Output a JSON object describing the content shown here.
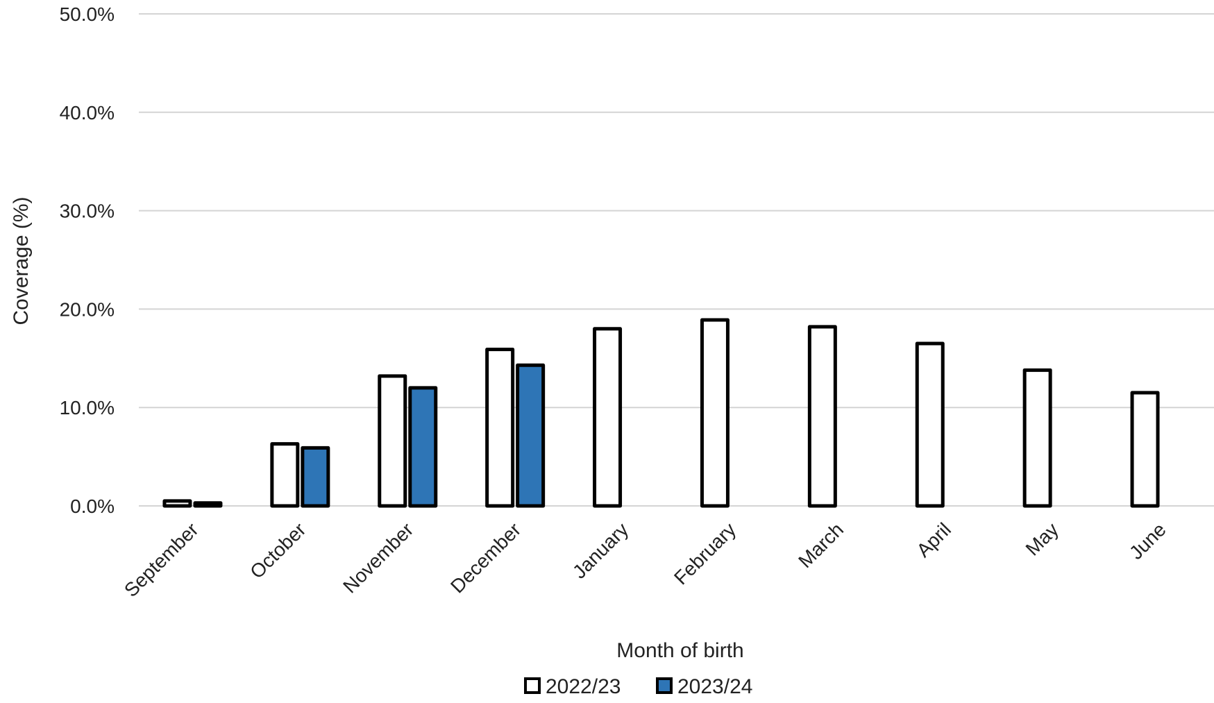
{
  "chart_data": {
    "type": "bar",
    "title": "",
    "xlabel": "Month of birth",
    "ylabel": "Coverage (%)",
    "ylim": [
      0,
      50
    ],
    "yticks": [
      "0.0%",
      "10.0%",
      "20.0%",
      "30.0%",
      "40.0%",
      "50.0%"
    ],
    "grid": "horizontal",
    "legend_position": "bottom",
    "categories": [
      "September",
      "October",
      "November",
      "December",
      "January",
      "February",
      "March",
      "April",
      "May",
      "June"
    ],
    "series": [
      {
        "name": "2022/23",
        "color": "#ffffff",
        "values": [
          0.5,
          6.3,
          13.2,
          15.9,
          18.0,
          18.9,
          18.2,
          16.5,
          13.8,
          11.5
        ]
      },
      {
        "name": "2023/24",
        "color": "#2e75b6",
        "values": [
          0.3,
          5.9,
          12.0,
          14.3,
          null,
          null,
          null,
          null,
          null,
          null
        ]
      }
    ]
  }
}
